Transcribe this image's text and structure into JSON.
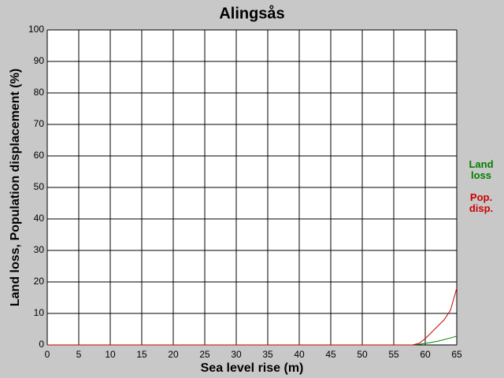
{
  "chart_data": {
    "type": "line",
    "title": "Alingsås",
    "x_label": "Sea level rise (m)",
    "y_label": "Land loss, Population displacement (%)",
    "x": [
      0,
      56,
      57,
      58,
      59,
      60,
      61,
      62,
      63,
      64,
      65
    ],
    "series": [
      {
        "name": "Land loss",
        "color": "#008000",
        "values": [
          null,
          0,
          0,
          0,
          0.2,
          0.5,
          0.8,
          1.2,
          1.7,
          2.2,
          2.8
        ]
      },
      {
        "name": "Pop. disp.",
        "color": "#cc0000",
        "values": [
          0,
          0,
          0,
          0,
          0.5,
          2,
          4,
          6,
          8,
          11,
          18
        ]
      }
    ],
    "xlim": [
      0,
      65
    ],
    "xticks": [
      0,
      5,
      10,
      15,
      20,
      25,
      30,
      35,
      40,
      45,
      50,
      55,
      60,
      65
    ],
    "ylim": [
      0,
      100
    ],
    "yticks": [
      0,
      10,
      20,
      30,
      40,
      50,
      60,
      70,
      80,
      90,
      100
    ],
    "grid": true
  }
}
